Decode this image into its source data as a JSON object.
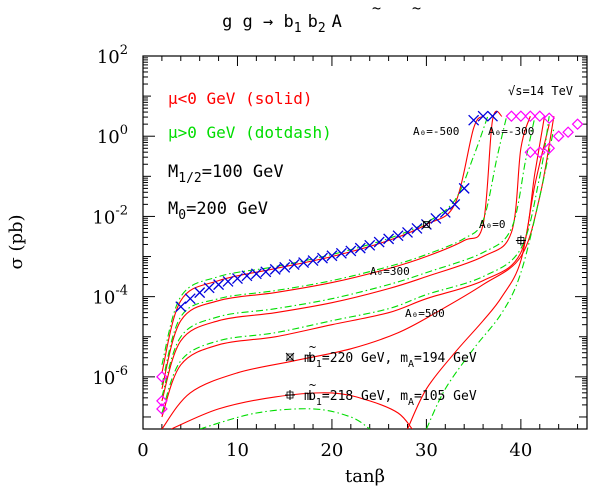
{
  "chart_data": {
    "type": "line",
    "title": "g g → b̃₁ b̃₂ A",
    "title_parts": {
      "main": "g g → ",
      "b1": "b",
      "b1_sub": "1",
      "b2": "b",
      "b2_sub": "2",
      "end": "A"
    },
    "xlabel": "tanβ",
    "ylabel": "σ (pb)",
    "xlim": [
      0,
      47
    ],
    "ylim_log10": [
      -7.3,
      2
    ],
    "y_scale": "log",
    "x_ticks": [
      "0",
      "10",
      "20",
      "30",
      "40"
    ],
    "x_tick_values": [
      0,
      10,
      20,
      30,
      40
    ],
    "y_ticks": [
      {
        "base": "10",
        "exp": "2",
        "value": 2
      },
      {
        "base": "10",
        "exp": "0",
        "value": 0
      },
      {
        "base": "10",
        "exp": "-2",
        "value": -2
      },
      {
        "base": "10",
        "exp": "-4",
        "value": -4
      },
      {
        "base": "10",
        "exp": "-6",
        "value": -6
      }
    ],
    "legend": {
      "mu_neg": "μ<0 GeV (solid)",
      "mu_pos": "μ>0 GeV (dotdash)",
      "m_half": "M",
      "m_half_sub": "1/2",
      "m_half_val": "=100 GeV",
      "m_zero": "M",
      "m_zero_sub": "0",
      "m_zero_val": "=200 GeV",
      "sqrt_s": "√s=14 TeV",
      "colors": {
        "mu_neg": "#ff0000",
        "mu_pos": "#00dd00"
      }
    },
    "annotations": {
      "a0_m500": "A₀=-500",
      "a0_m300": "A₀=-300",
      "a0_0": "A₀=0",
      "a0_300": "A₀=300",
      "a0_500": "A₀=500"
    },
    "point_labels": {
      "star": {
        "pre": "m",
        "tilde": "b",
        "sub": "1",
        "post": "=220 GeV, m",
        "sub2": "A",
        "post2": "=194 GeV"
      },
      "plus": {
        "pre": "m",
        "tilde": "b",
        "sub": "1",
        "post": "=218 GeV, m",
        "sub2": "A",
        "post2": "=105 GeV"
      }
    },
    "series": [
      {
        "line": "solid",
        "color": "#ff0000",
        "x": [
          2,
          4,
          8,
          14,
          20,
          26,
          30,
          33,
          35,
          36
        ],
        "y_log10": [
          -5.9,
          -4.1,
          -3.6,
          -3.3,
          -3.0,
          -2.6,
          -2.2,
          -1.7,
          0.2,
          0.5
        ]
      },
      {
        "line": "solid",
        "color": "#ff0000",
        "x": [
          2,
          4,
          8,
          14,
          20,
          26,
          30,
          34,
          36,
          37,
          38
        ],
        "y_log10": [
          -6.3,
          -4.6,
          -4.1,
          -3.9,
          -3.65,
          -3.3,
          -3.0,
          -2.6,
          -2.2,
          0.4,
          0.5
        ]
      },
      {
        "line": "solid",
        "color": "#ff0000",
        "x": [
          2,
          4,
          8,
          14,
          20,
          26,
          30,
          36,
          39,
          40,
          41
        ],
        "y_log10": [
          -6.6,
          -5.1,
          -4.6,
          -4.4,
          -4.15,
          -3.8,
          -3.5,
          -3.0,
          -2.4,
          -0.3,
          0.5
        ]
      },
      {
        "line": "solid",
        "color": "#ff0000",
        "x": [
          2,
          4,
          8,
          14,
          20,
          26,
          30,
          36,
          40,
          41.5,
          42.5
        ],
        "y_log10": [
          -7.0,
          -5.7,
          -5.2,
          -5.0,
          -4.7,
          -4.4,
          -4.05,
          -3.6,
          -2.9,
          -0.9,
          0.5
        ]
      },
      {
        "line": "solid",
        "color": "#ff0000",
        "x": [
          2,
          5,
          10,
          16,
          22,
          27,
          31,
          36,
          40,
          42,
          43.5
        ],
        "y_log10": [
          -7.3,
          -6.4,
          -5.9,
          -5.6,
          -5.3,
          -4.9,
          -4.4,
          -3.7,
          -3.0,
          -1.5,
          0.5
        ]
      },
      {
        "line": "solid",
        "color": "#ff0000",
        "x": [
          3,
          8,
          14,
          20,
          24,
          27,
          28.5
        ],
        "y_log10": [
          -7.3,
          -6.8,
          -6.5,
          -6.4,
          -6.6,
          -6.9,
          -7.3
        ]
      },
      {
        "line": "solid",
        "color": "#ff0000",
        "x": [
          28,
          30,
          33,
          36,
          38,
          40,
          41.5,
          43
        ],
        "y_log10": [
          -7.3,
          -6.3,
          -5.4,
          -4.6,
          -4.0,
          -3.1,
          -1.2,
          0.3
        ]
      },
      {
        "line": "dotdash",
        "color": "#00dd00",
        "x": [
          2,
          4,
          8,
          14,
          20,
          26,
          30,
          33,
          35,
          36.5
        ],
        "y_log10": [
          -5.7,
          -4.0,
          -3.5,
          -3.25,
          -2.95,
          -2.55,
          -2.15,
          -1.6,
          -0.5,
          0.5
        ]
      },
      {
        "line": "dotdash",
        "color": "#00dd00",
        "x": [
          2,
          4,
          8,
          14,
          20,
          26,
          30,
          34,
          36,
          37.5,
          38.5
        ],
        "y_log10": [
          -6.2,
          -4.5,
          -4.05,
          -3.85,
          -3.6,
          -3.25,
          -2.95,
          -2.55,
          -2.1,
          -0.5,
          0.5
        ]
      },
      {
        "line": "dotdash",
        "color": "#00dd00",
        "x": [
          2,
          4,
          8,
          14,
          20,
          26,
          30,
          36,
          39,
          40.5,
          41.5
        ],
        "y_log10": [
          -6.5,
          -5.0,
          -4.5,
          -4.3,
          -4.05,
          -3.7,
          -3.4,
          -2.9,
          -2.3,
          -0.6,
          0.5
        ]
      },
      {
        "line": "dotdash",
        "color": "#00dd00",
        "x": [
          2,
          4,
          8,
          14,
          20,
          26,
          30,
          36,
          40,
          42,
          43
        ],
        "y_log10": [
          -6.9,
          -5.6,
          -5.1,
          -4.9,
          -4.6,
          -4.3,
          -3.95,
          -3.5,
          -2.8,
          -1.0,
          0.5
        ]
      },
      {
        "line": "dotdash",
        "color": "#00dd00",
        "x": [
          6,
          12,
          18,
          22,
          24
        ],
        "y_log10": [
          -7.3,
          -6.9,
          -6.8,
          -7.0,
          -7.3
        ]
      },
      {
        "line": "dotdash",
        "color": "#00dd00",
        "x": [
          30,
          32,
          35,
          38,
          40,
          42,
          43.5
        ],
        "y_log10": [
          -7.3,
          -6.3,
          -5.3,
          -4.4,
          -3.4,
          -1.5,
          0.2
        ]
      },
      {
        "line": "markers",
        "marker": "x",
        "color": "#0000dd",
        "x": [
          4,
          5,
          6,
          7,
          8,
          9,
          10,
          11,
          12,
          13,
          14,
          15,
          16,
          17,
          18,
          19,
          20,
          21,
          22,
          23,
          24,
          25,
          26,
          27,
          28,
          29,
          30,
          31,
          32,
          33,
          34,
          35,
          36,
          37
        ],
        "y_log10": [
          -4.25,
          -4.05,
          -3.9,
          -3.78,
          -3.7,
          -3.62,
          -3.55,
          -3.48,
          -3.43,
          -3.38,
          -3.32,
          -3.27,
          -3.2,
          -3.15,
          -3.1,
          -3.04,
          -2.98,
          -2.92,
          -2.86,
          -2.79,
          -2.72,
          -2.64,
          -2.56,
          -2.48,
          -2.4,
          -2.3,
          -2.2,
          -2.05,
          -1.9,
          -1.7,
          -1.3,
          0.4,
          0.5,
          0.5
        ]
      },
      {
        "line": "markers",
        "marker": "diamond",
        "color": "#ff00ff",
        "x": [
          2,
          2,
          2,
          39,
          40,
          41,
          42,
          43,
          41,
          42,
          43,
          44,
          45,
          46
        ],
        "y_log10": [
          -6.0,
          -6.6,
          -6.8,
          0.5,
          0.5,
          0.5,
          0.5,
          0.45,
          -0.4,
          -0.4,
          -0.3,
          0.0,
          0.1,
          0.3
        ]
      }
    ],
    "special_points": [
      {
        "marker": "star",
        "x": 30,
        "y_log10": -2.2
      },
      {
        "marker": "plus",
        "x": 40,
        "y_log10": -2.6
      }
    ]
  }
}
